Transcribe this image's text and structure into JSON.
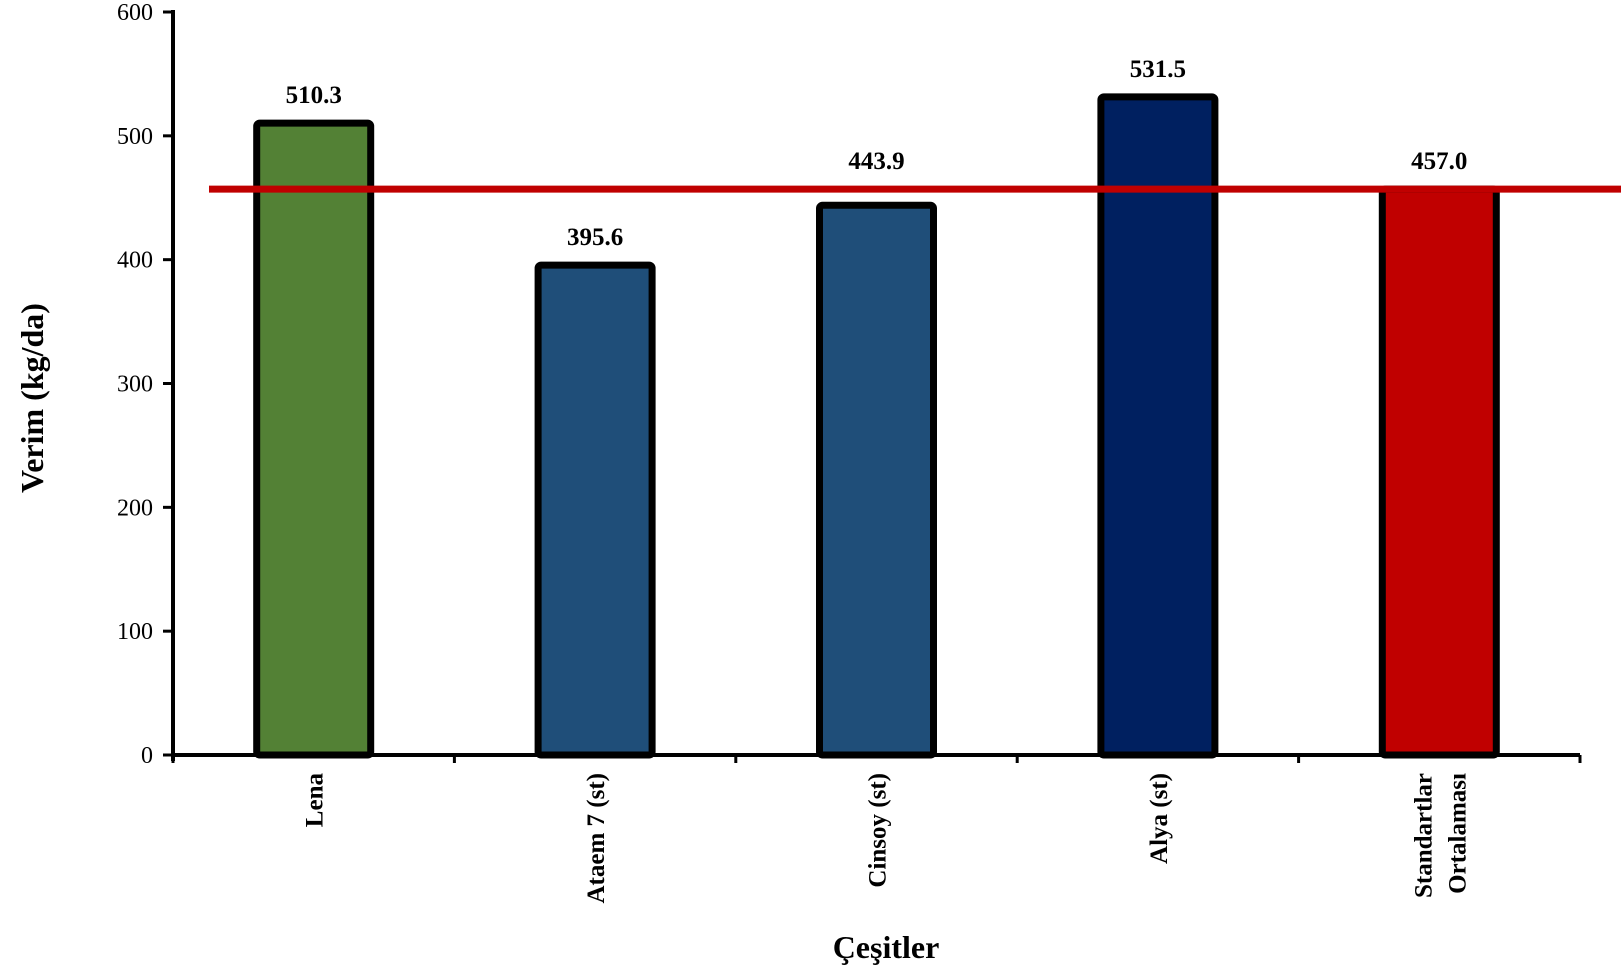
{
  "chart_data": {
    "type": "bar",
    "title": "",
    "xlabel": "Çeşitler",
    "ylabel": "Verim (kg/da)",
    "ylim": [
      0,
      600
    ],
    "yticks": [
      0,
      100,
      200,
      300,
      400,
      500,
      600
    ],
    "categories": [
      [
        "Lena"
      ],
      [
        "Ataem 7 (st)"
      ],
      [
        "Cinsoy (st)"
      ],
      [
        "Alya (st)"
      ],
      [
        "Standartlar",
        "Ortalaması"
      ]
    ],
    "values": [
      510.3,
      395.6,
      443.9,
      531.5,
      457.0
    ],
    "data_labels": [
      "510.3",
      "395.6",
      "443.9",
      "531.5",
      "457.0"
    ],
    "bar_colors": [
      "#538135",
      "#1F4E79",
      "#1F4E79",
      "#002060",
      "#C00000"
    ],
    "bar_outline_color": "#000000",
    "reference_line": {
      "value": 457.0,
      "color": "#C00000"
    },
    "grid": false,
    "legend": "none"
  }
}
